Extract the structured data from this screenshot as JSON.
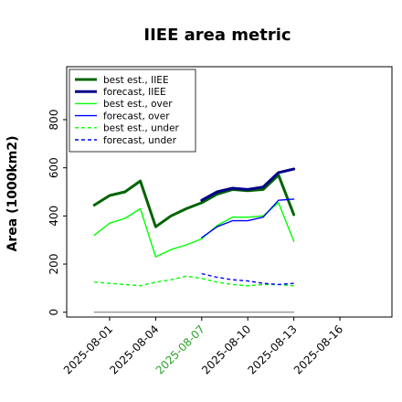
{
  "chart_data": {
    "type": "line",
    "title": "IIEE area metric",
    "ylabel": "Area (1000km2)",
    "xlabel": "",
    "ylim": [
      -20,
      1020
    ],
    "yticks": [
      0,
      200,
      400,
      600,
      800
    ],
    "x_tick_labels": [
      "2025-08-01",
      "2025-08-04",
      "2025-08-07",
      "2025-08-10",
      "2025-08-13",
      "2025-08-16"
    ],
    "x_tick_colors": [
      "#000000",
      "#000000",
      "#2ca02c",
      "#000000",
      "#000000",
      "#000000"
    ],
    "legend_position": "upper left",
    "legend": [
      {
        "label": "best est., IIEE",
        "color": "#006400",
        "dash": "solid",
        "width": 3
      },
      {
        "label": "forecast, IIEE",
        "color": "#00008b",
        "dash": "solid",
        "width": 3
      },
      {
        "label": "best est., over",
        "color": "#00ff00",
        "dash": "solid",
        "width": 1.4
      },
      {
        "label": "forecast, over",
        "color": "#0000ff",
        "dash": "solid",
        "width": 1.4
      },
      {
        "label": "best est., under",
        "color": "#00ff00",
        "dash": "dashed",
        "width": 1.4
      },
      {
        "label": "forecast, under",
        "color": "#0000ff",
        "dash": "dashed",
        "width": 1.4
      }
    ],
    "series": [
      {
        "name": "best est., IIEE",
        "color": "#006400",
        "dash": "solid",
        "width": 3,
        "x": [
          "2025-07-31",
          "2025-08-01",
          "2025-08-02",
          "2025-08-03",
          "2025-08-04",
          "2025-08-05",
          "2025-08-06",
          "2025-08-07",
          "2025-08-08",
          "2025-08-09",
          "2025-08-10",
          "2025-08-11",
          "2025-08-12",
          "2025-08-13"
        ],
        "y": [
          445,
          485,
          500,
          545,
          355,
          400,
          430,
          455,
          490,
          510,
          505,
          510,
          570,
          405
        ]
      },
      {
        "name": "forecast, IIEE",
        "color": "#00008b",
        "dash": "solid",
        "width": 3,
        "x": [
          "2025-08-07",
          "2025-08-08",
          "2025-08-09",
          "2025-08-10",
          "2025-08-11",
          "2025-08-12",
          "2025-08-13"
        ],
        "y": [
          465,
          500,
          515,
          510,
          520,
          580,
          595
        ]
      },
      {
        "name": "best est., over",
        "color": "#00ff00",
        "dash": "solid",
        "width": 1.4,
        "x": [
          "2025-07-31",
          "2025-08-01",
          "2025-08-02",
          "2025-08-03",
          "2025-08-04",
          "2025-08-05",
          "2025-08-06",
          "2025-08-07",
          "2025-08-08",
          "2025-08-09",
          "2025-08-10",
          "2025-08-11",
          "2025-08-12",
          "2025-08-13"
        ],
        "y": [
          320,
          370,
          390,
          430,
          230,
          260,
          280,
          305,
          360,
          395,
          395,
          400,
          455,
          295
        ]
      },
      {
        "name": "forecast, over",
        "color": "#0000ff",
        "dash": "solid",
        "width": 1.4,
        "x": [
          "2025-08-07",
          "2025-08-08",
          "2025-08-09",
          "2025-08-10",
          "2025-08-11",
          "2025-08-12",
          "2025-08-13"
        ],
        "y": [
          310,
          355,
          380,
          380,
          395,
          465,
          470
        ]
      },
      {
        "name": "best est., under",
        "color": "#00ff00",
        "dash": "dashed",
        "width": 1.4,
        "x": [
          "2025-07-31",
          "2025-08-01",
          "2025-08-02",
          "2025-08-03",
          "2025-08-04",
          "2025-08-05",
          "2025-08-06",
          "2025-08-07",
          "2025-08-08",
          "2025-08-09",
          "2025-08-10",
          "2025-08-11",
          "2025-08-12",
          "2025-08-13"
        ],
        "y": [
          125,
          120,
          115,
          110,
          125,
          135,
          150,
          140,
          125,
          115,
          110,
          115,
          115,
          110
        ]
      },
      {
        "name": "forecast, under",
        "color": "#0000ff",
        "dash": "dashed",
        "width": 1.4,
        "x": [
          "2025-08-07",
          "2025-08-08",
          "2025-08-09",
          "2025-08-10",
          "2025-08-11",
          "2025-08-12",
          "2025-08-13"
        ],
        "y": [
          160,
          145,
          135,
          130,
          120,
          115,
          120
        ]
      },
      {
        "name": "",
        "color": "#808080",
        "dash": "solid",
        "width": 1.2,
        "x": [
          "2025-07-31",
          "2025-08-13"
        ],
        "y": [
          0,
          0
        ]
      }
    ]
  }
}
